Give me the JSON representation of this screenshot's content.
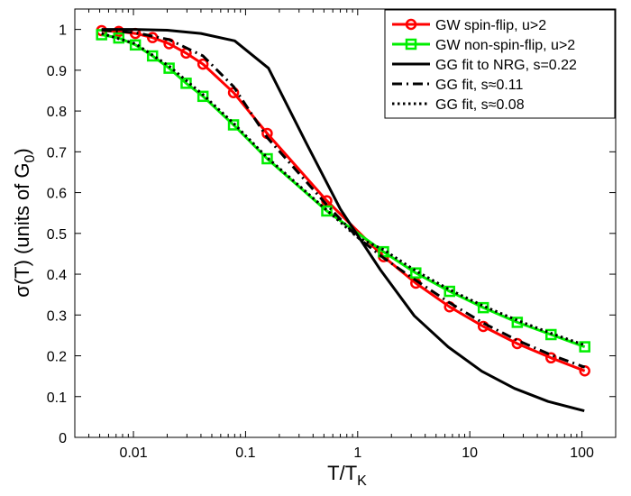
{
  "chart_data": {
    "type": "line",
    "xscale": "log",
    "xlim": [
      0.003,
      200
    ],
    "ylim": [
      0,
      1.05
    ],
    "grid": false,
    "legend_position": "top-right",
    "xlabel": "T/T",
    "xlabel_sub": "K",
    "ylabel": "σ(T) (units of G",
    "ylabel_sub": "0",
    "ylabel_end": ")",
    "x_ticks": [
      0.01,
      0.1,
      1,
      10,
      100
    ],
    "x_tick_labels": [
      "0.01",
      "0.1",
      "1",
      "10",
      "100"
    ],
    "y_ticks": [
      0,
      0.1,
      0.2,
      0.3,
      0.4,
      0.5,
      0.6,
      0.7,
      0.8,
      0.9,
      1
    ],
    "y_tick_labels": [
      "0",
      "0.1",
      "0.2",
      "0.3",
      "0.4",
      "0.5",
      "0.6",
      "0.7",
      "0.8",
      "0.9",
      "1"
    ],
    "series": [
      {
        "name": "GW spin-flip, u>2",
        "color": "#ff0000",
        "line": "solid",
        "marker": "circle",
        "x": [
          0.0052,
          0.0074,
          0.0104,
          0.0148,
          0.0208,
          0.0295,
          0.0417,
          0.0781,
          0.156,
          0.53,
          1.7,
          3.3,
          6.6,
          13.2,
          26.5,
          53,
          106
        ],
        "y": [
          0.997,
          0.995,
          0.99,
          0.98,
          0.965,
          0.942,
          0.915,
          0.845,
          0.745,
          0.58,
          0.443,
          0.378,
          0.32,
          0.272,
          0.23,
          0.195,
          0.163
        ]
      },
      {
        "name": "GW non-spin-flip, u>2",
        "color": "#00ee00",
        "line": "solid",
        "marker": "square",
        "x": [
          0.0052,
          0.0074,
          0.0104,
          0.0148,
          0.0208,
          0.0295,
          0.0417,
          0.0781,
          0.156,
          0.53,
          1.7,
          3.3,
          6.6,
          13.2,
          26.5,
          53,
          106
        ],
        "y": [
          0.987,
          0.979,
          0.962,
          0.935,
          0.905,
          0.868,
          0.836,
          0.766,
          0.683,
          0.555,
          0.455,
          0.403,
          0.358,
          0.318,
          0.282,
          0.252,
          0.222
        ]
      },
      {
        "name": "GG fit to NRG, s=0.22",
        "color": "#000000",
        "line": "solid",
        "marker": "none",
        "x": [
          0.0052,
          0.01,
          0.02,
          0.04,
          0.08,
          0.16,
          0.35,
          0.7,
          1,
          1.6,
          3.2,
          6.4,
          12.8,
          25,
          50,
          105
        ],
        "y": [
          1.0,
          1.0,
          0.998,
          0.99,
          0.972,
          0.905,
          0.72,
          0.56,
          0.495,
          0.41,
          0.298,
          0.222,
          0.162,
          0.12,
          0.088,
          0.065
        ]
      },
      {
        "name": "GG fit, s≈0.11",
        "color": "#000000",
        "line": "dashdot",
        "marker": "none",
        "x": [
          0.0052,
          0.0104,
          0.0208,
          0.0417,
          0.0781,
          0.156,
          0.53,
          1,
          1.7,
          3.3,
          6.6,
          13.2,
          26.5,
          53,
          106
        ],
        "y": [
          0.998,
          0.992,
          0.975,
          0.935,
          0.86,
          0.735,
          0.57,
          0.49,
          0.44,
          0.385,
          0.33,
          0.28,
          0.238,
          0.202,
          0.172
        ]
      },
      {
        "name": "GG fit, s≈0.08",
        "color": "#000000",
        "line": "dotted",
        "marker": "none",
        "x": [
          0.0052,
          0.0104,
          0.0208,
          0.0417,
          0.0781,
          0.156,
          0.53,
          1,
          1.7,
          3.3,
          6.6,
          13.2,
          26.5,
          53,
          106
        ],
        "y": [
          0.99,
          0.965,
          0.91,
          0.84,
          0.77,
          0.686,
          0.557,
          0.49,
          0.46,
          0.408,
          0.362,
          0.322,
          0.287,
          0.255,
          0.226
        ]
      }
    ]
  }
}
